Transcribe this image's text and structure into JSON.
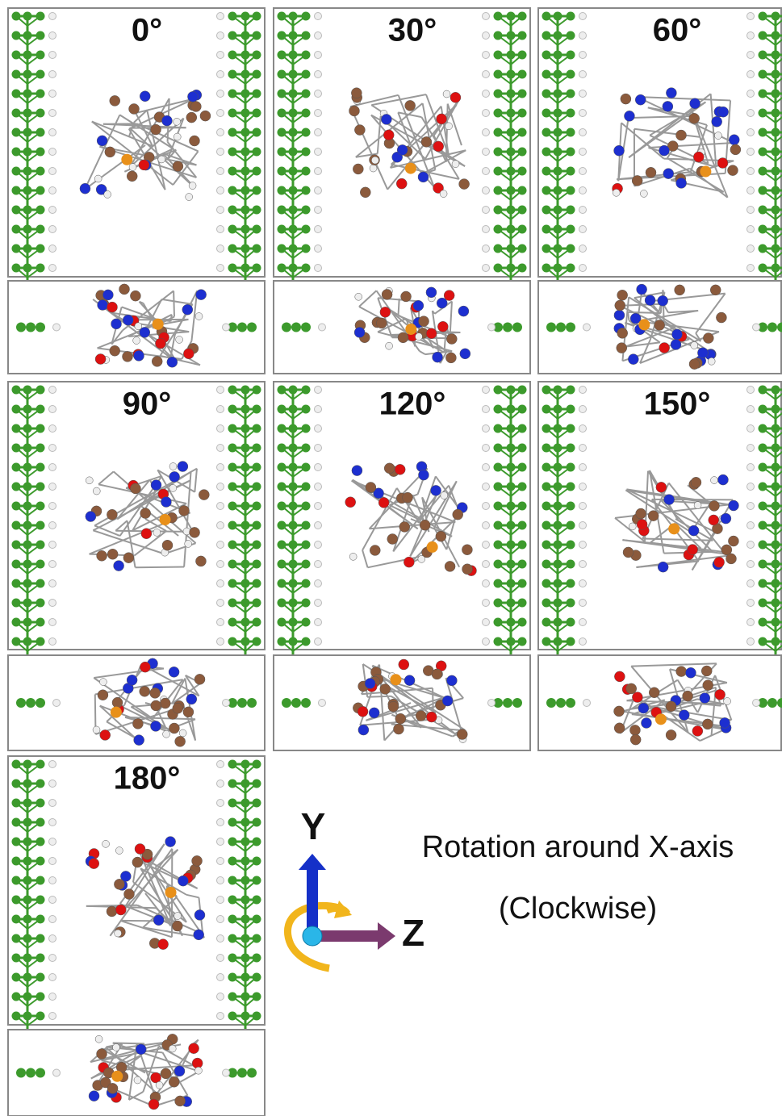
{
  "panels": [
    {
      "label": "0°"
    },
    {
      "label": "30°"
    },
    {
      "label": "60°"
    },
    {
      "label": "90°"
    },
    {
      "label": "120°"
    },
    {
      "label": "150°"
    },
    {
      "label": "180°"
    }
  ],
  "axes": {
    "y": "Y",
    "z": "Z"
  },
  "caption": {
    "line1": "Rotation around X-axis",
    "line2": "(Clockwise)"
  }
}
